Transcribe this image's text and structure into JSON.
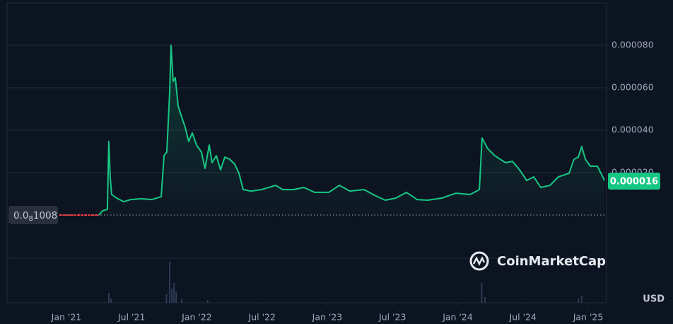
{
  "chart_data": {
    "type": "line",
    "x": [
      -0.65,
      2.99,
      3.32,
      3.77,
      3.9,
      4.03,
      4.16,
      4.62,
      5.27,
      5.92,
      6.89,
      7.87,
      8.72,
      8.98,
      9.24,
      9.5,
      9.63,
      9.82,
      10.02,
      10.28,
      10.6,
      10.93,
      11.25,
      11.58,
      11.97,
      12.42,
      12.75,
      13.14,
      13.4,
      13.79,
      14.18,
      14.57,
      15.02,
      15.48,
      15.87,
      16.26,
      16.98,
      17.95,
      19.25,
      19.9,
      20.88,
      21.85,
      22.83,
      24.13,
      25.11,
      26.08,
      27.38,
      28.36,
      29.33,
      30.31,
      31.28,
      32.26,
      33.24,
      34.54,
      35.84,
      37.15,
      37.99,
      38.24,
      38.76,
      39.41,
      40.39,
      41.04,
      41.69,
      42.34,
      42.99,
      43.64,
      44.49,
      45.27,
      46.24,
      46.7,
      47.09,
      47.41,
      47.74,
      48.2,
      48.85,
      49.5
    ],
    "values": [
      1.008e-09,
      1.008e-09,
      2e-06,
      2.7e-06,
      3.47e-05,
      1.8e-05,
      9.7e-06,
      8e-06,
      6.3e-06,
      7.3e-06,
      7.7e-06,
      7.3e-06,
      8.7e-06,
      2.8e-05,
      2.97e-05,
      5.8e-05,
      8e-05,
      6.3e-05,
      6.47e-05,
      5.13e-05,
      4.63e-05,
      4.13e-05,
      3.47e-05,
      3.87e-05,
      3.3e-05,
      2.97e-05,
      2.2e-05,
      3.3e-05,
      2.47e-05,
      2.8e-05,
      2.13e-05,
      2.73e-05,
      2.63e-05,
      2.4e-05,
      1.97e-05,
      1.2e-05,
      1.13e-05,
      1.2e-05,
      1.4e-05,
      1.2e-05,
      1.2e-05,
      1.3e-05,
      1.07e-05,
      1.07e-05,
      1.4e-05,
      1.13e-05,
      1.2e-05,
      9.3e-06,
      7e-06,
      8e-06,
      1.07e-05,
      7.3e-06,
      7e-06,
      8e-06,
      1.03e-05,
      9.7e-06,
      1.2e-05,
      3.63e-05,
      3.13e-05,
      2.8e-05,
      2.47e-05,
      2.53e-05,
      2.13e-05,
      1.63e-05,
      1.8e-05,
      1.3e-05,
      1.4e-05,
      1.8e-05,
      1.97e-05,
      2.63e-05,
      2.73e-05,
      3.23e-05,
      2.63e-05,
      2.3e-05,
      2.3e-05,
      1.63e-05
    ],
    "color": "#16c784",
    "start_color": "#ea3943",
    "xlim": [
      -5.46,
      49.69
    ],
    "xticks": [
      {
        "value": 0,
        "label": "Jan '21"
      },
      {
        "value": 6,
        "label": "Jul '21"
      },
      {
        "value": 12,
        "label": "Jan '22"
      },
      {
        "value": 18,
        "label": "Jul '22"
      },
      {
        "value": 24,
        "label": "Jan '23"
      },
      {
        "value": 30,
        "label": "Jul '23"
      },
      {
        "value": 36,
        "label": "Jan '24"
      },
      {
        "value": 42,
        "label": "Jul '24"
      },
      {
        "value": 48,
        "label": "Jan '25"
      }
    ],
    "ylim": [
      0,
      0.0001
    ],
    "yticks": [
      {
        "value": 2e-05,
        "label": "0.000020"
      },
      {
        "value": 4e-05,
        "label": "0.000040"
      },
      {
        "value": 6e-05,
        "label": "0.000060"
      },
      {
        "value": 8e-05,
        "label": "0.000080"
      }
    ],
    "grid": true,
    "start_price": {
      "value": 1.008e-09,
      "label": [
        "0.0",
        "8",
        "1008"
      ]
    },
    "current_price": {
      "value": 1.6e-05,
      "label": "0.000016"
    },
    "currency": "USD",
    "watermark": "CoinMarketCap",
    "volume": {
      "x": [
        3.9,
        4.1,
        9.2,
        9.5,
        9.7,
        9.9,
        10.1,
        10.6,
        13.0,
        38.2,
        38.5,
        47.1,
        47.4
      ],
      "values": [
        14,
        6,
        12,
        58,
        20,
        28,
        16,
        6,
        4,
        28,
        8,
        6,
        10
      ],
      "ylim": [
        0,
        60
      ],
      "color": "#2e3a57"
    }
  }
}
